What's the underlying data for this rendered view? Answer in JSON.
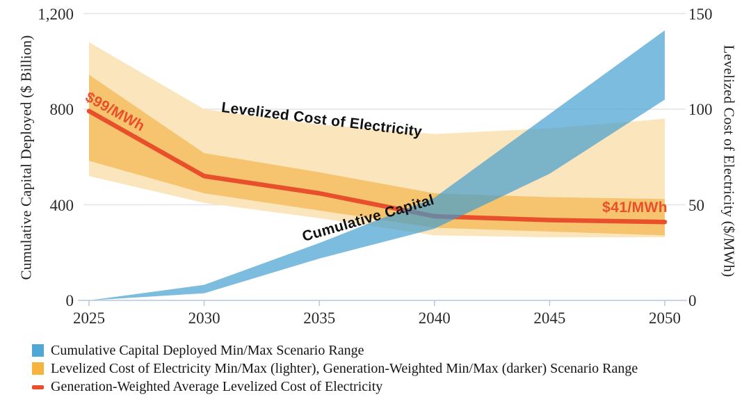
{
  "chart_data": {
    "type": "area",
    "title": "",
    "x": [
      2025,
      2030,
      2035,
      2040,
      2045,
      2050
    ],
    "x_tick_labels": [
      "2025",
      "2030",
      "2035",
      "2040",
      "2045",
      "2050"
    ],
    "left_axis": {
      "label": "Cumulative Capital Deployed ($ Billion)",
      "tick_labels": [
        "0",
        "400",
        "800",
        "1,200"
      ],
      "tick_values": [
        0,
        400,
        800,
        1200
      ],
      "range": [
        0,
        1200
      ]
    },
    "right_axis": {
      "label": "Levelized Cost of Electricity ($/MWh)",
      "tick_labels": [
        "0",
        "50",
        "100",
        "150"
      ],
      "tick_values": [
        0,
        50,
        100,
        150
      ],
      "range": [
        0,
        150
      ]
    },
    "grid": "horizontal-only",
    "series": [
      {
        "name": "Levelized Cost of Electricity Min/Max Scenario Range (lighter)",
        "kind": "band",
        "axis": "right",
        "color": "#FBE5BC",
        "opacity": 1,
        "lower": [
          65,
          51,
          43,
          34,
          33,
          33
        ],
        "upper": [
          135,
          100,
          92,
          87,
          90,
          95
        ]
      },
      {
        "name": "Generation-Weighted Min/Max Scenario Range (darker)",
        "kind": "band",
        "axis": "right",
        "color": "#F6C46F",
        "opacity": 1,
        "lower": [
          73,
          56,
          47,
          38,
          36,
          34
        ],
        "upper": [
          118,
          77,
          67,
          56,
          54,
          53
        ]
      },
      {
        "name": "Generation-Weighted Average Levelized Cost of Electricity",
        "kind": "line",
        "axis": "right",
        "color": "#E8502B",
        "stroke_width": 6.5,
        "values": [
          99,
          65,
          56,
          44,
          42,
          41
        ]
      },
      {
        "name": "Cumulative Capital Deployed Min/Max Scenario Range",
        "kind": "band",
        "axis": "left",
        "color": "#3E9CD0",
        "opacity": 0.68,
        "lower": [
          0,
          30,
          175,
          300,
          530,
          840
        ],
        "upper": [
          0,
          65,
          240,
          430,
          780,
          1130
        ]
      }
    ],
    "annotations": {
      "start_value_label": "$99/MWh",
      "end_value_label": "$41/MWh",
      "value_label_color": "#E8502B",
      "lcoe_band_label": "Levelized Cost of Electricity",
      "capital_band_label": "Cumulative Capital"
    },
    "axis_line_color": "#B9C6DF",
    "gridline_color": "#E4E4E4",
    "text_color": "#2a2a2a"
  },
  "legend": {
    "items": [
      {
        "swatch": "square",
        "color": "#4FA7D5",
        "label": "Cumulative Capital Deployed Min/Max Scenario Range"
      },
      {
        "swatch": "square",
        "color": "#F5B43E",
        "label": "Levelized Cost of Electricity Min/Max (lighter), Generation-Weighted Min/Max (darker) Scenario Range"
      },
      {
        "swatch": "dash",
        "color": "#E8502B",
        "label": "Generation-Weighted Average Levelized Cost of Electricity"
      }
    ]
  }
}
